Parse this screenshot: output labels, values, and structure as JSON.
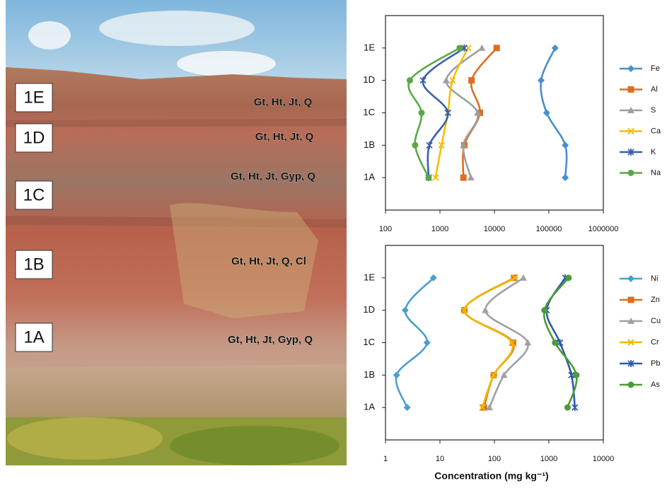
{
  "photo": {
    "layers": [
      {
        "label": "1E",
        "minerals": "Gt, Ht, Jt,  Q"
      },
      {
        "label": "1D",
        "minerals": "Gt, Ht, Jt,  Q"
      },
      {
        "label": "1C",
        "minerals": "Gt, Ht, Jt, Gyp, Q"
      },
      {
        "label": "1B",
        "minerals": "Gt, Ht, Jt,  Q, Cl"
      },
      {
        "label": "1A",
        "minerals": "Gt, Ht, Jt, Gyp, Q"
      }
    ]
  },
  "chart_data": [
    {
      "type": "line",
      "xscale": "log",
      "legend": "right",
      "categories": [
        "1A",
        "1B",
        "1C",
        "1D",
        "1E"
      ],
      "xlim": [
        100,
        1000000
      ],
      "xticks": [
        100,
        1000,
        10000,
        100000,
        1000000
      ],
      "series": [
        {
          "name": "Fe",
          "color": "#4a8fc9",
          "marker": "diamond",
          "values": [
            200000,
            200000,
            91000,
            72000,
            130000
          ]
        },
        {
          "name": "Al",
          "color": "#e06c1f",
          "marker": "square",
          "values": [
            2700,
            2800,
            5400,
            3800,
            11000
          ]
        },
        {
          "name": "S",
          "color": "#9e9e9e",
          "marker": "triangle",
          "values": [
            3700,
            2700,
            4900,
            1300,
            5900
          ]
        },
        {
          "name": "Ca",
          "color": "#f2c000",
          "marker": "x",
          "values": [
            830,
            1070,
            1400,
            1700,
            3300
          ]
        },
        {
          "name": "K",
          "color": "#3a5fb0",
          "marker": "star",
          "values": [
            620,
            640,
            1400,
            490,
            2800
          ]
        },
        {
          "name": "Na",
          "color": "#5aa845",
          "marker": "circle",
          "values": [
            620,
            350,
            460,
            280,
            2300
          ]
        }
      ]
    },
    {
      "type": "line",
      "xscale": "log",
      "legend": "right",
      "xlabel": "Concentration (mg kg⁻¹)",
      "categories": [
        "1A",
        "1B",
        "1C",
        "1D",
        "1E"
      ],
      "xlim": [
        1,
        10000
      ],
      "xticks": [
        1,
        10,
        100,
        1000,
        10000
      ],
      "series": [
        {
          "name": "Ni",
          "color": "#4a9fd0",
          "marker": "diamond",
          "values": [
            2.5,
            1.6,
            5.8,
            2.3,
            7.6
          ]
        },
        {
          "name": "Zn",
          "color": "#e06c1f",
          "marker": "square",
          "values": [
            64,
            97,
            220,
            28,
            230
          ]
        },
        {
          "name": "Cu",
          "color": "#a0a0a0",
          "marker": "triangle",
          "values": [
            81,
            150,
            410,
            68,
            340
          ]
        },
        {
          "name": "Cr",
          "color": "#f2b800",
          "marker": "x",
          "values": [
            60,
            97,
            210,
            28,
            240
          ]
        },
        {
          "name": "Pb",
          "color": "#2f5aa8",
          "marker": "star",
          "values": [
            3000,
            2600,
            1600,
            910,
            2000
          ]
        },
        {
          "name": "As",
          "color": "#4a9c3a",
          "marker": "circle",
          "values": [
            2200,
            3200,
            1300,
            830,
            2300
          ]
        }
      ]
    }
  ]
}
